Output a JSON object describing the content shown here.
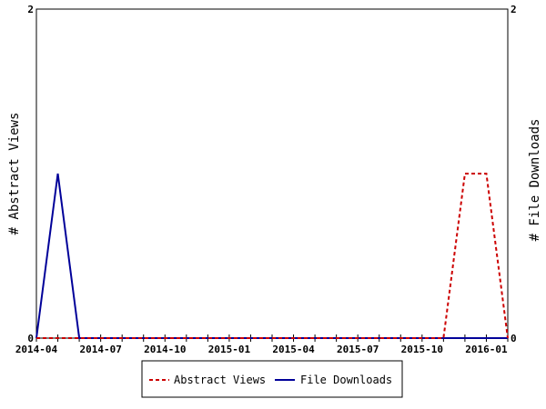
{
  "chart_data": {
    "type": "line",
    "x": [
      "2014-04",
      "2014-05",
      "2014-06",
      "2014-07",
      "2014-08",
      "2014-09",
      "2014-10",
      "2014-11",
      "2014-12",
      "2015-01",
      "2015-02",
      "2015-03",
      "2015-04",
      "2015-05",
      "2015-06",
      "2015-07",
      "2015-08",
      "2015-09",
      "2015-10",
      "2015-11",
      "2015-12",
      "2016-01",
      "2016-02"
    ],
    "x_ticks": [
      "2014-04",
      "2014-07",
      "2014-10",
      "2015-01",
      "2015-04",
      "2015-07",
      "2015-10",
      "2016-01"
    ],
    "series": [
      {
        "name": "Abstract Views",
        "axis": "left",
        "color": "#cc0000",
        "style": "dashed",
        "values": [
          0,
          0,
          0,
          0,
          0,
          0,
          0,
          0,
          0,
          0,
          0,
          0,
          0,
          0,
          0,
          0,
          0,
          0,
          0,
          0,
          1,
          1,
          0
        ]
      },
      {
        "name": "File Downloads",
        "axis": "right",
        "color": "#000099",
        "style": "solid",
        "values": [
          0,
          1,
          0,
          0,
          0,
          0,
          0,
          0,
          0,
          0,
          0,
          0,
          0,
          0,
          0,
          0,
          0,
          0,
          0,
          0,
          0,
          0,
          0
        ]
      }
    ],
    "ylabel_left": "# Abstract Views",
    "ylabel_right": "# File Downloads",
    "ylim": [
      0,
      2
    ],
    "y_ticks_left": [
      "0",
      "2"
    ],
    "y_ticks_right": [
      "0",
      "2"
    ],
    "grid": false,
    "legend": "bottom-center"
  }
}
